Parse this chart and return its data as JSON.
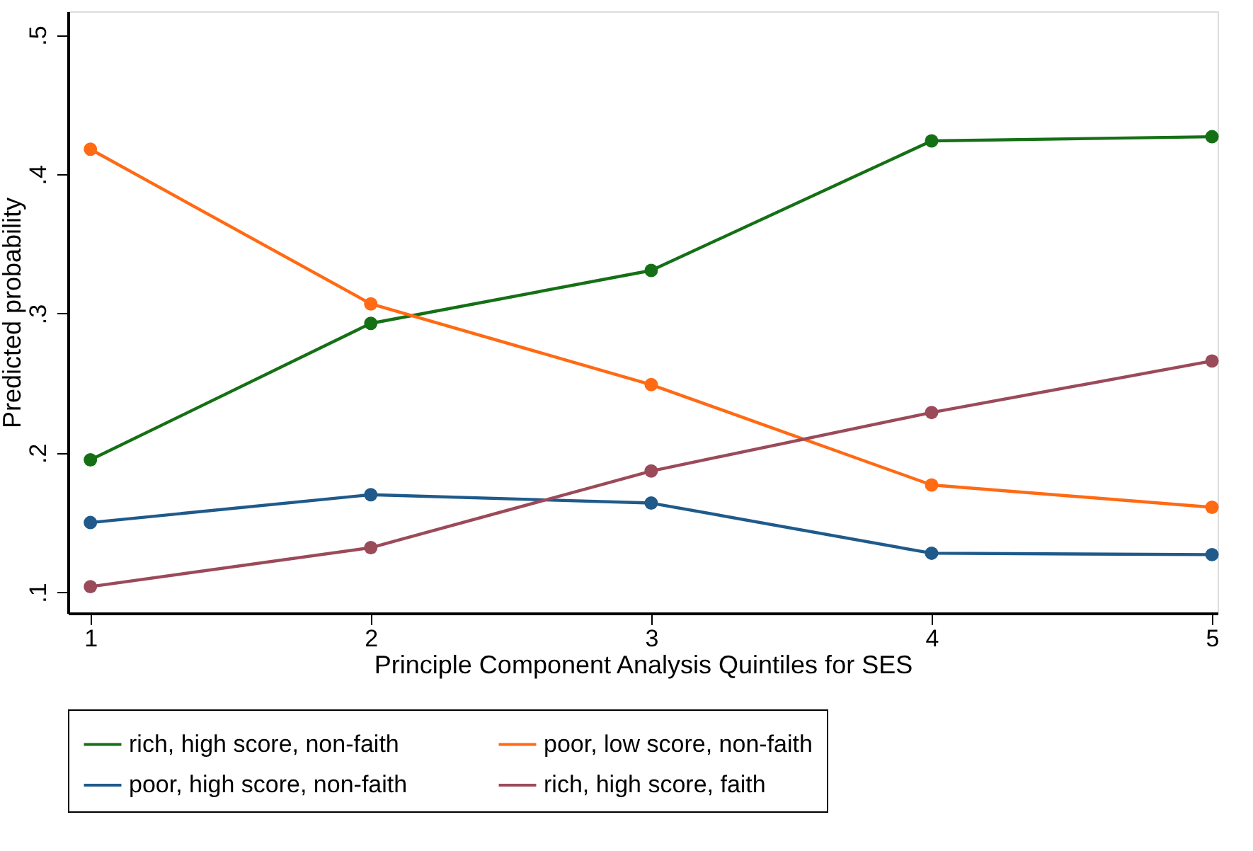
{
  "chart_data": {
    "type": "line",
    "xlabel": "Principle Component Analysis Quintiles for SES",
    "ylabel": "Predicted probability",
    "x": [
      1,
      2,
      3,
      4,
      5
    ],
    "series": [
      {
        "name": "rich, high score, non-faith",
        "color": "#157015",
        "values": [
          0.195,
          0.293,
          0.331,
          0.424,
          0.427
        ]
      },
      {
        "name": "poor, low score, non-faith",
        "color": "#ff6a13",
        "values": [
          0.418,
          0.307,
          0.249,
          0.177,
          0.161
        ]
      },
      {
        "name": "poor, high score, non-faith",
        "color": "#1f5a8a",
        "values": [
          0.15,
          0.17,
          0.164,
          0.128,
          0.127
        ]
      },
      {
        "name": "rich, high score, faith",
        "color": "#9b4a5a",
        "values": [
          0.104,
          0.132,
          0.187,
          0.229,
          0.266
        ]
      }
    ],
    "xlim": [
      0.92,
      5.02
    ],
    "ylim": [
      0.085,
      0.517
    ],
    "xticks": [
      1,
      2,
      3,
      4,
      5
    ],
    "yticks": [
      {
        "value": 0.1,
        "label": ".1"
      },
      {
        "value": 0.2,
        "label": ".2"
      },
      {
        "value": 0.3,
        "label": ".3"
      },
      {
        "value": 0.4,
        "label": ".4"
      },
      {
        "value": 0.5,
        "label": ".5"
      }
    ],
    "grid": false,
    "legend": "bottom",
    "marker": "circle",
    "line_style": "solid"
  }
}
